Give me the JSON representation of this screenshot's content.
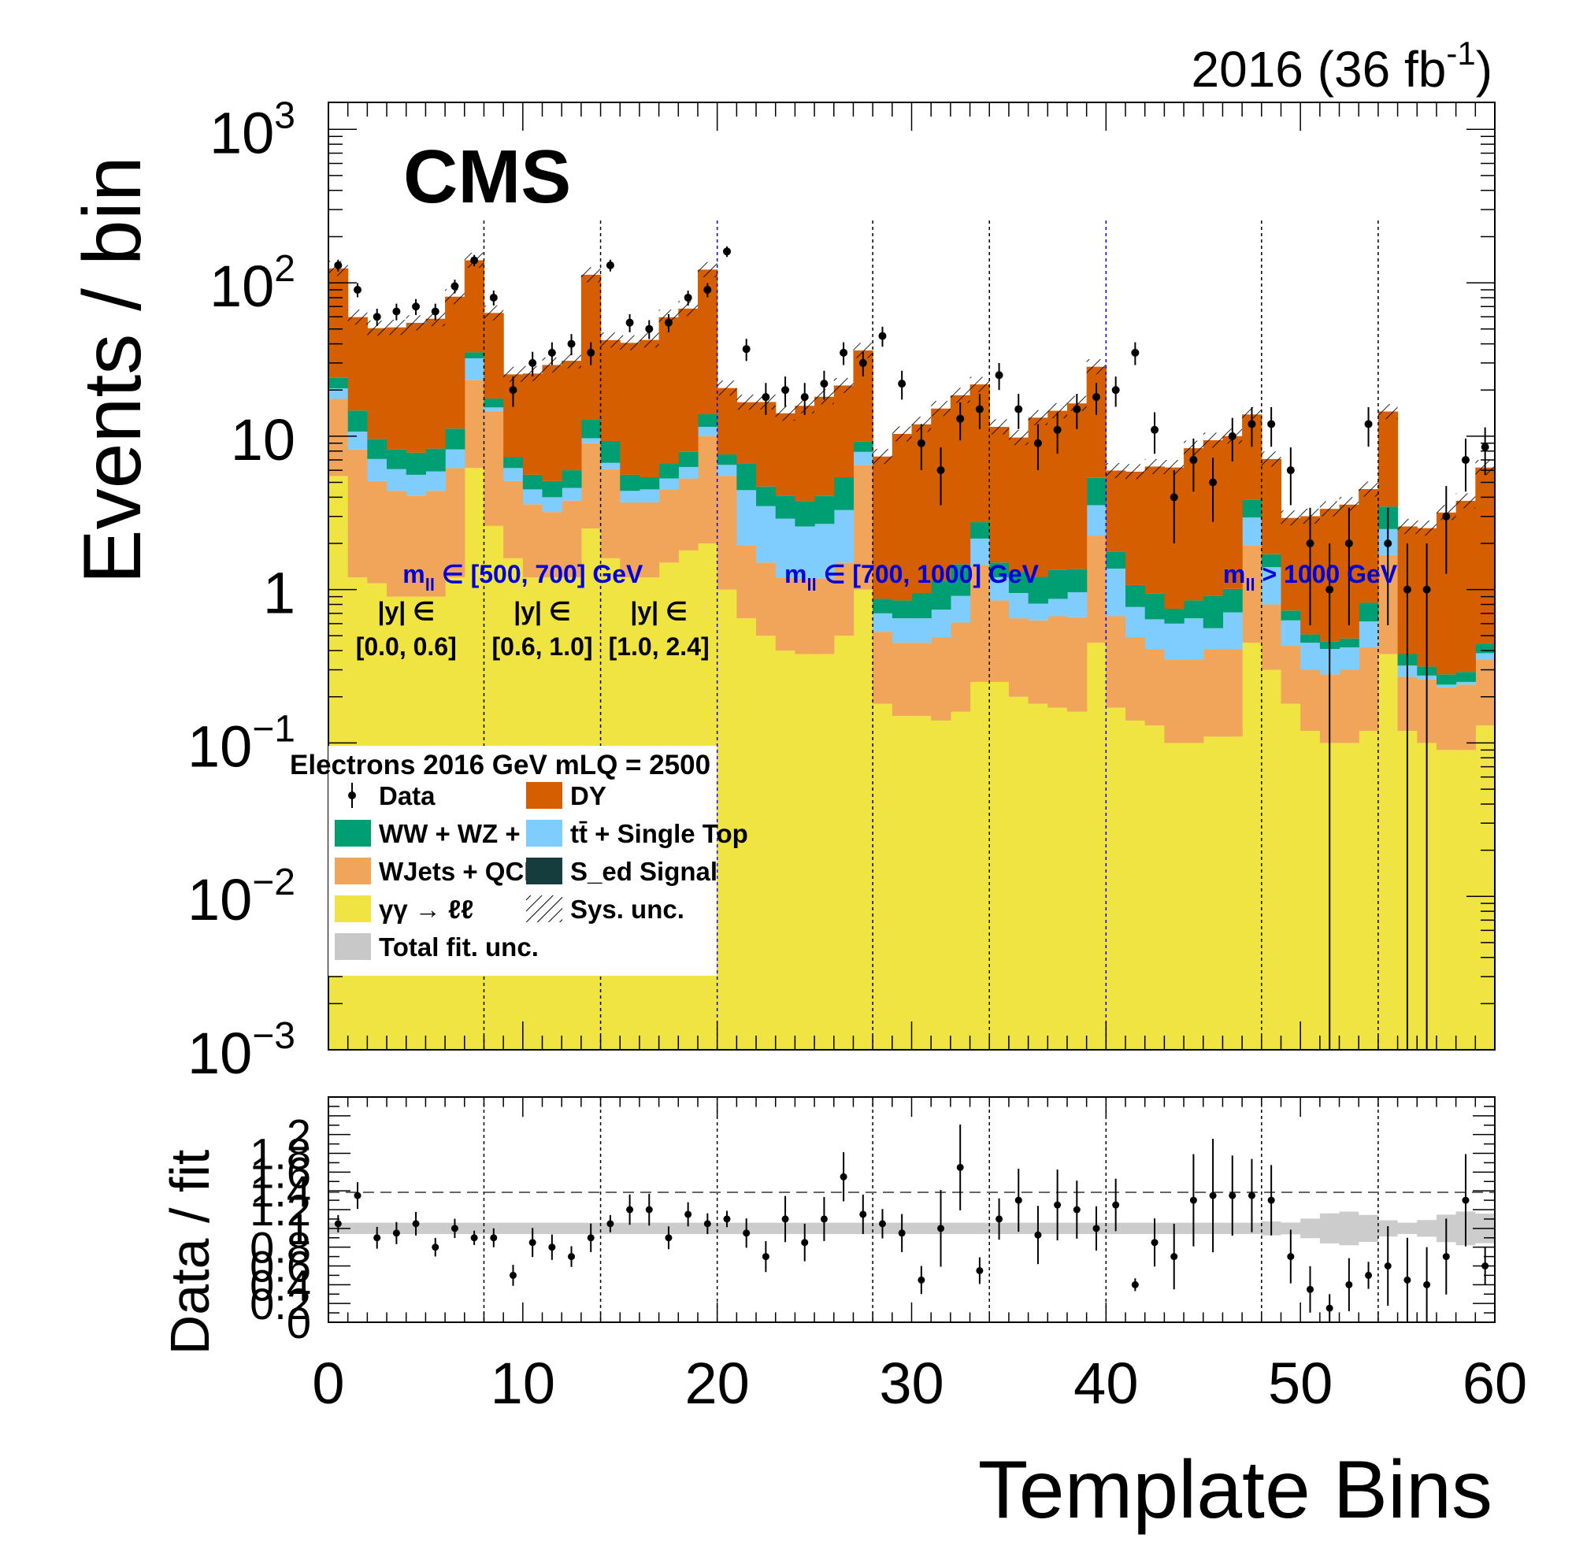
{
  "chart_data": {
    "type": "bar",
    "lumi_label": "2016 (36 fb",
    "lumi_sup": "-1",
    "lumi_close": ")",
    "experiment": "CMS",
    "ylabel": "Events / bin",
    "ratio_ylabel": "Data / fit",
    "xlabel": "Template Bins",
    "y_log_scale": true,
    "ylim": [
      0.001,
      1500
    ],
    "xlim": [
      0,
      60
    ],
    "y_ticks": [
      {
        "value": 1000,
        "base": "10",
        "sup": "3"
      },
      {
        "value": 100,
        "base": "10",
        "sup": "2"
      },
      {
        "value": 10,
        "base": "10",
        "sup": ""
      },
      {
        "value": 1,
        "base": "1",
        "sup": ""
      },
      {
        "value": 0.1,
        "base": "10",
        "sup": "−1"
      },
      {
        "value": 0.01,
        "base": "10",
        "sup": "−2"
      },
      {
        "value": 0.001,
        "base": "10",
        "sup": "−3"
      }
    ],
    "x_ticks": [
      "0",
      "10",
      "20",
      "30",
      "40",
      "50",
      "60"
    ],
    "ratio_tick_labels": [
      "2",
      "1.8",
      "1.6",
      "1.4",
      "1.2",
      "1",
      "0.8",
      "0.6",
      "0.4",
      "0.2",
      "0"
    ],
    "region_boundaries": [
      8,
      14,
      20,
      28,
      34,
      40,
      48,
      54
    ],
    "mass_boundaries": [
      20,
      40
    ],
    "mass_labels": [
      {
        "text": "m",
        "sub": "ll",
        "rest": " ∈ [500, 700] GeV",
        "x": 10
      },
      {
        "text": "m",
        "sub": "ll",
        "rest": " ∈ [700, 1000] GeV",
        "x": 30
      },
      {
        "text": "m",
        "sub": "ll",
        "rest": " > 1000 GeV",
        "x": 50.5
      }
    ],
    "rapidity_labels": [
      {
        "line1": "|y| ∈",
        "line2": "[0.0, 0.6]",
        "x": 4
      },
      {
        "line1": "|y| ∈",
        "line2": "[0.6, 1.0]",
        "x": 11
      },
      {
        "line1": "|y| ∈",
        "line2": "[1.0, 2.4]",
        "x": 17
      }
    ],
    "legend": {
      "header": "Electrons 2016  GeV mLQ = 2500",
      "entries": [
        {
          "label": "Data",
          "style": "marker"
        },
        {
          "label": "DY",
          "style": "fill",
          "color": "#d55e00"
        },
        {
          "label": "WW + WZ + ZZ",
          "style": "fill",
          "color": "#009e73"
        },
        {
          "label": "tt̄ + Single Top",
          "style": "fill",
          "color": "#7fcdff"
        },
        {
          "label": "WJets + QCD",
          "style": "fill",
          "color": "#f0a55a"
        },
        {
          "label": "S_ed Signal",
          "style": "fill",
          "color": "#153d3d"
        },
        {
          "label": "γγ → ℓℓ",
          "style": "fill",
          "color": "#f0e442"
        },
        {
          "label": "Sys. unc.",
          "style": "hatch"
        },
        {
          "label": "Total fit. unc.",
          "style": "gray"
        }
      ]
    },
    "series": [
      {
        "name": "γγ → ℓℓ",
        "color": "#f0e442",
        "values": [
          5.5,
          1.2,
          1.1,
          0.9,
          0.9,
          0.9,
          1.2,
          6.2,
          2.6,
          1.6,
          1.2,
          1.2,
          1.2,
          2.5,
          1.6,
          1.2,
          1.2,
          1.5,
          1.8,
          2.0,
          1.0,
          0.65,
          0.5,
          0.4,
          0.38,
          0.38,
          0.5,
          1.0,
          0.18,
          0.15,
          0.15,
          0.14,
          0.16,
          0.25,
          0.25,
          0.2,
          0.18,
          0.17,
          0.16,
          0.45,
          0.17,
          0.14,
          0.13,
          0.1,
          0.1,
          0.11,
          0.11,
          0.45,
          0.3,
          0.18,
          0.12,
          0.1,
          0.1,
          0.12,
          0.38,
          0.12,
          0.1,
          0.09,
          0.09,
          0.13
        ]
      },
      {
        "name": "WJets + QCD",
        "color": "#f0a55a",
        "values": [
          12,
          7,
          4,
          3.5,
          3.2,
          3.5,
          5,
          17,
          12,
          3.5,
          2.4,
          2,
          2.6,
          6.5,
          4.5,
          2.5,
          2.5,
          3,
          3.5,
          8,
          4.5,
          1.3,
          1.0,
          0.8,
          0.8,
          0.8,
          1.0,
          5.5,
          0.35,
          0.3,
          0.3,
          0.35,
          0.45,
          1.2,
          0.6,
          0.45,
          0.45,
          0.5,
          0.5,
          1.8,
          0.5,
          0.35,
          0.28,
          0.25,
          0.25,
          0.3,
          0.3,
          1.5,
          0.5,
          0.25,
          0.18,
          0.18,
          0.2,
          0.3,
          1.3,
          0.15,
          0.16,
          0.14,
          0.15,
          0.22
        ]
      },
      {
        "name": "tt̄ + Single Top",
        "color": "#7fcdff",
        "values": [
          3,
          2.5,
          2,
          1.7,
          1.5,
          1.5,
          2,
          9,
          0.8,
          1.1,
          0.9,
          0.8,
          0.8,
          0.7,
          0.6,
          0.7,
          0.8,
          0.8,
          1,
          1.5,
          1.0,
          2.5,
          2.0,
          1.7,
          1.4,
          1.5,
          1.8,
          1.4,
          0.17,
          0.2,
          0.2,
          0.25,
          0.3,
          0.7,
          0.35,
          0.3,
          0.18,
          0.2,
          0.3,
          1.3,
          0.7,
          0.28,
          0.23,
          0.25,
          0.3,
          0.15,
          0.3,
          1.0,
          0.6,
          0.2,
          0.15,
          0.13,
          0.12,
          0.2,
          0.8,
          0.05,
          0.015,
          0.01,
          0.01,
          0.035
        ]
      },
      {
        "name": "WW + WZ + ZZ",
        "color": "#009e73",
        "values": [
          3.5,
          4,
          2.5,
          2.1,
          2.2,
          2.4,
          3,
          3,
          2.2,
          1.1,
          1.1,
          1.1,
          1.4,
          3.1,
          2.6,
          1.2,
          0.9,
          1.3,
          1.6,
          2.4,
          1.1,
          2.2,
          1.2,
          1.2,
          1.2,
          1.4,
          2.1,
          1.3,
          0.17,
          0.2,
          0.3,
          0.4,
          0.55,
          0.6,
          0.3,
          0.35,
          0.4,
          0.48,
          0.4,
          1.8,
          0.4,
          0.3,
          0.3,
          0.15,
          0.2,
          0.35,
          0.3,
          0.9,
          0.3,
          0.1,
          0.06,
          0.05,
          0.06,
          0.2,
          1.0,
          0.06,
          0.04,
          0.04,
          0.04,
          0.06
        ]
      },
      {
        "name": "DY",
        "color": "#d55e00",
        "values": [
          100,
          45,
          41,
          43,
          47,
          50,
          70,
          105,
          46,
          18,
          20,
          24,
          25,
          100,
          33,
          35,
          37,
          53,
          60,
          108,
          13,
          10,
          12,
          10,
          12,
          14,
          16,
          27,
          6.5,
          9.5,
          11,
          14,
          17,
          19,
          10,
          8.5,
          12,
          13.3,
          15,
          23,
          4.2,
          4.8,
          5.4,
          5.5,
          7.5,
          8.5,
          9,
          10,
          5.4,
          2.2,
          2.5,
          2.9,
          3.1,
          3.7,
          11,
          2.2,
          2.2,
          2.9,
          3.5,
          5.8
        ]
      },
      {
        "name": "Data",
        "values": [
          130,
          90,
          60,
          65,
          70,
          65,
          95,
          140,
          80,
          20,
          30,
          35,
          40,
          35,
          130,
          55,
          50,
          55,
          80,
          90,
          160,
          37,
          18,
          20,
          18,
          22,
          35,
          30,
          45,
          22,
          9,
          6,
          13,
          15,
          25,
          15,
          9,
          11,
          15,
          18,
          20,
          35,
          11,
          4,
          7,
          5,
          10,
          12,
          12,
          6,
          2,
          1,
          2,
          12,
          2,
          1,
          1,
          3,
          7,
          8.5
        ]
      }
    ],
    "ratio_data": [
      1.05,
      1.35,
      0.9,
      0.95,
      1.05,
      0.8,
      1.0,
      0.9,
      0.9,
      0.5,
      0.85,
      0.8,
      0.7,
      0.9,
      1.05,
      1.2,
      1.2,
      0.9,
      1.15,
      1.05,
      1.1,
      0.95,
      0.7,
      1.1,
      0.85,
      1.1,
      1.55,
      1.15,
      1.05,
      0.95,
      0.45,
      1.0,
      1.65,
      0.55,
      1.1,
      1.3,
      0.93,
      1.25,
      1.2,
      1.0,
      1.25,
      0.4,
      0.85,
      0.7,
      1.3,
      1.35,
      1.35,
      1.35,
      1.3,
      0.7,
      0.35,
      0.15,
      0.4,
      0.5,
      0.6,
      0.45,
      0.4,
      0.7,
      1.3,
      0.6
    ]
  }
}
